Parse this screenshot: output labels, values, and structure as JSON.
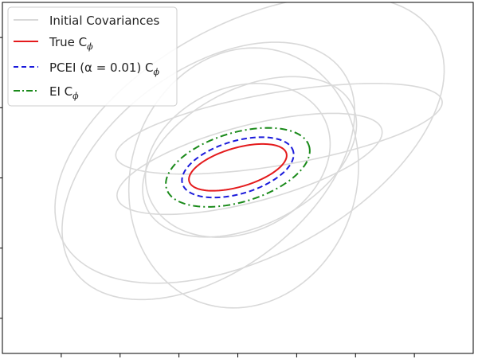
{
  "chart_data": {
    "type": "line",
    "title": "",
    "xlabel": "",
    "ylabel": "",
    "xlim": [
      -4,
      4
    ],
    "ylim": [
      -2.5,
      2.5
    ],
    "xticks_labels_shown": false,
    "yticks_labels_shown": false,
    "grid": false,
    "legend_position": "top-left",
    "series": [
      {
        "name": "Initial Covariances",
        "style": "solid",
        "color": "#d9d9d9",
        "ellipses": [
          {
            "cx": 0.7,
            "cy": 0.7,
            "rx": 2.8,
            "ry": 0.52,
            "angle_deg": 8
          },
          {
            "cx": 0.2,
            "cy": 0.2,
            "rx": 2.3,
            "ry": 0.55,
            "angle_deg": 12
          },
          {
            "cx": -0.5,
            "cy": 0.1,
            "rx": 2.7,
            "ry": 1.5,
            "angle_deg": 28
          },
          {
            "cx": 0.2,
            "cy": 0.55,
            "rx": 3.5,
            "ry": 1.7,
            "angle_deg": 22
          },
          {
            "cx": 0.2,
            "cy": 0.3,
            "rx": 1.9,
            "ry": 1.0,
            "angle_deg": 20
          },
          {
            "cx": 0.0,
            "cy": 0.25,
            "rx": 1.6,
            "ry": 1.05,
            "angle_deg": 15
          },
          {
            "cx": 0.1,
            "cy": 0.0,
            "rx": 2.0,
            "ry": 1.8,
            "angle_deg": 30
          }
        ]
      },
      {
        "name": "True C",
        "subscript": "ϕ",
        "style": "solid",
        "color": "#e41a1c",
        "ellipses": [
          {
            "cx": 0.0,
            "cy": 0.15,
            "rx": 0.85,
            "ry": 0.28,
            "angle_deg": 13
          }
        ]
      },
      {
        "name": "PCEI (α = 0.01) C",
        "subscript": "ϕ",
        "style": "dashed",
        "color": "#1a1adb",
        "ellipses": [
          {
            "cx": 0.0,
            "cy": 0.15,
            "rx": 0.97,
            "ry": 0.38,
            "angle_deg": 13
          }
        ]
      },
      {
        "name": "EI C",
        "subscript": "ϕ",
        "style": "dashdot",
        "color": "#1a8a1a",
        "ellipses": [
          {
            "cx": 0.0,
            "cy": 0.15,
            "rx": 1.25,
            "ry": 0.5,
            "angle_deg": 13
          }
        ]
      }
    ]
  }
}
